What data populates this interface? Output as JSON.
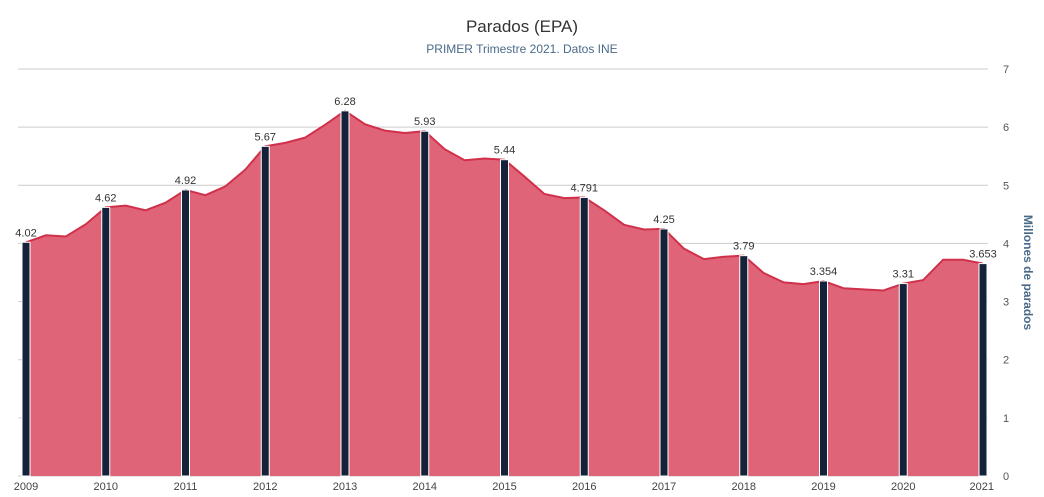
{
  "colors": {
    "area_fill": "#e06478",
    "area_line": "#d0304a",
    "bar": "#14223a",
    "grid": "#cccccc",
    "axis_label": "#4a6a8a",
    "text": "#333333"
  },
  "chart_data": {
    "type": "area",
    "title": "Parados (EPA)",
    "subtitle": "PRIMER Trimestre 2021. Datos INE",
    "ylabel": "Millones de parados",
    "xlabel": "",
    "ylim": [
      0,
      7
    ],
    "y_ticks": [
      "0",
      "1",
      "2",
      "3",
      "4",
      "5",
      "6",
      "7"
    ],
    "x_ticks": [
      "2009",
      "2010",
      "2011",
      "2012",
      "2013",
      "2014",
      "2015",
      "2016",
      "2017",
      "2018",
      "2019",
      "2020",
      "2021"
    ],
    "grid": true,
    "legend": "none",
    "series": [
      {
        "type": "area",
        "quarters": [
          "2009 T1",
          "2009 T2",
          "2009 T3",
          "2009 T4",
          "2010 T1",
          "2010 T2",
          "2010 T3",
          "2010 T4",
          "2011 T1",
          "2011 T2",
          "2011 T3",
          "2011 T4",
          "2012 T1",
          "2012 T2",
          "2012 T3",
          "2012 T4",
          "2013 T1",
          "2013 T2",
          "2013 T3",
          "2013 T4",
          "2014 T1",
          "2014 T2",
          "2014 T3",
          "2014 T4",
          "2015 T1",
          "2015 T2",
          "2015 T3",
          "2015 T4",
          "2016 T1",
          "2016 T2",
          "2016 T3",
          "2016 T4",
          "2017 T1",
          "2017 T2",
          "2017 T3",
          "2017 T4",
          "2018 T1",
          "2018 T2",
          "2018 T3",
          "2018 T4",
          "2019 T1",
          "2019 T2",
          "2019 T3",
          "2019 T4",
          "2020 T1",
          "2020 T2",
          "2020 T3",
          "2020 T4",
          "2021 T1"
        ],
        "values": [
          4.02,
          4.14,
          4.12,
          4.33,
          4.62,
          4.65,
          4.57,
          4.7,
          4.92,
          4.83,
          4.98,
          5.27,
          5.67,
          5.73,
          5.82,
          6.04,
          6.28,
          6.05,
          5.94,
          5.9,
          5.93,
          5.62,
          5.43,
          5.46,
          5.44,
          5.15,
          4.85,
          4.78,
          4.791,
          4.57,
          4.32,
          4.24,
          4.25,
          3.91,
          3.73,
          3.77,
          3.79,
          3.49,
          3.33,
          3.3,
          3.354,
          3.23,
          3.21,
          3.19,
          3.31,
          3.37,
          3.72,
          3.72,
          3.653
        ]
      },
      {
        "type": "bar",
        "categories": [
          "2009",
          "2010",
          "2011",
          "2012",
          "2013",
          "2014",
          "2015",
          "2016",
          "2017",
          "2018",
          "2019",
          "2020",
          "2021"
        ],
        "values": [
          4.02,
          4.62,
          4.92,
          5.67,
          6.28,
          5.93,
          5.44,
          4.791,
          4.25,
          3.79,
          3.354,
          3.31,
          3.653
        ],
        "labels": [
          "4.02",
          "4.62",
          "4.92",
          "5.67",
          "6.28",
          "5.93",
          "5.44",
          "4.791",
          "4.25",
          "3.79",
          "3.354",
          "3.31",
          "3.653"
        ]
      }
    ]
  }
}
